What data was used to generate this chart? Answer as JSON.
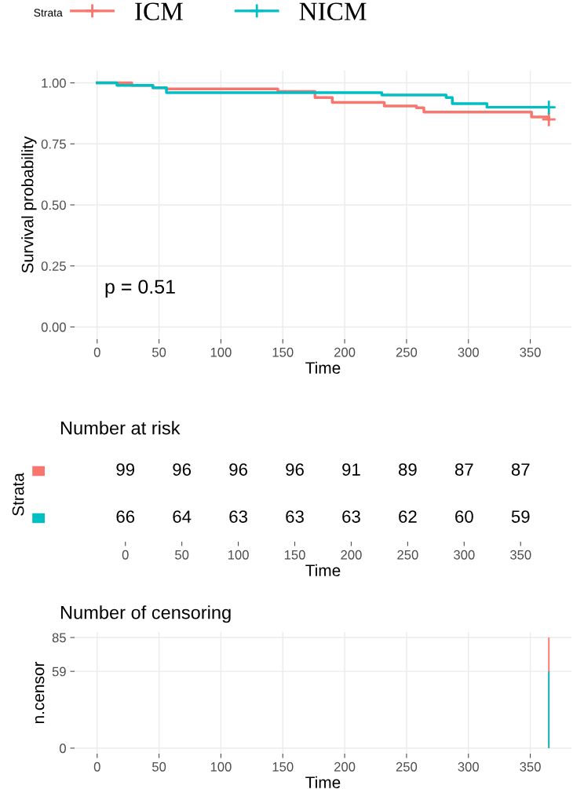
{
  "chart_data": [
    {
      "type": "step",
      "ylabel": "Survival probability",
      "xlabel": "Time",
      "legend_title": "Strata",
      "legend": "top",
      "grid": true,
      "xlim": [
        -18.25,
        383.25
      ],
      "xticks": [
        0,
        50,
        100,
        150,
        200,
        250,
        300,
        350
      ],
      "ylim": [
        -0.05,
        1.05
      ],
      "yticks": [
        {
          "value": 0,
          "label": "0.00"
        },
        {
          "value": 0.25,
          "label": "0.25"
        },
        {
          "value": 0.5,
          "label": "0.50"
        },
        {
          "value": 0.75,
          "label": "0.75"
        },
        {
          "value": 1,
          "label": "1.00"
        }
      ],
      "annotations": [
        "p = 0.51"
      ],
      "series": [
        {
          "name": "ICM",
          "color": "#f8766d",
          "x": [
            0,
            28,
            45,
            56,
            146,
            176,
            190,
            232,
            258,
            264,
            351,
            365
          ],
          "values": [
            1.0,
            0.99,
            0.98,
            0.975,
            0.965,
            0.94,
            0.92,
            0.905,
            0.898,
            0.88,
            0.86,
            0.85
          ]
        },
        {
          "name": "NICM",
          "color": "#00bfc4",
          "x": [
            0,
            16,
            45,
            56,
            230,
            282,
            287,
            315,
            365
          ],
          "values": [
            1.0,
            0.99,
            0.98,
            0.96,
            0.95,
            0.94,
            0.915,
            0.9,
            0.9
          ]
        },
        {
          "type": "scatter",
          "marker": "cross",
          "color": "#f8766d",
          "x": [
            365
          ],
          "values": [
            0.85
          ]
        },
        {
          "type": "scatter",
          "marker": "cross",
          "color": "#00bfc4",
          "x": [
            365
          ],
          "values": [
            0.9
          ]
        }
      ]
    },
    {
      "type": "heatmap",
      "title": "Number at risk",
      "ylabel": "Strata",
      "xlabel": "Time",
      "categories": [
        "0",
        "50",
        "100",
        "150",
        "200",
        "250",
        "300",
        "350"
      ],
      "y_categories": [
        null,
        null
      ],
      "colors": [
        "#f8766d",
        "#00bfc4"
      ],
      "data_labels": true,
      "cells": [
        [
          99,
          96,
          96,
          96,
          91,
          89,
          87,
          87
        ],
        [
          66,
          64,
          63,
          63,
          63,
          62,
          60,
          59
        ]
      ]
    },
    {
      "type": "bar",
      "title": "Number of censoring",
      "ylabel": "n.censor",
      "xlabel": "Time",
      "grid": true,
      "xlim": [
        -18.25,
        383.25
      ],
      "xticks": [
        0,
        50,
        100,
        150,
        200,
        250,
        300,
        350
      ],
      "ylim": [
        -4.25,
        89.25
      ],
      "yticks": [
        0,
        59,
        85
      ],
      "series": [
        {
          "color": "#f8766d",
          "x": [
            365
          ],
          "values": [
            85
          ]
        },
        {
          "color": "#00bfc4",
          "x": [
            365
          ],
          "values": [
            59
          ]
        }
      ]
    }
  ]
}
